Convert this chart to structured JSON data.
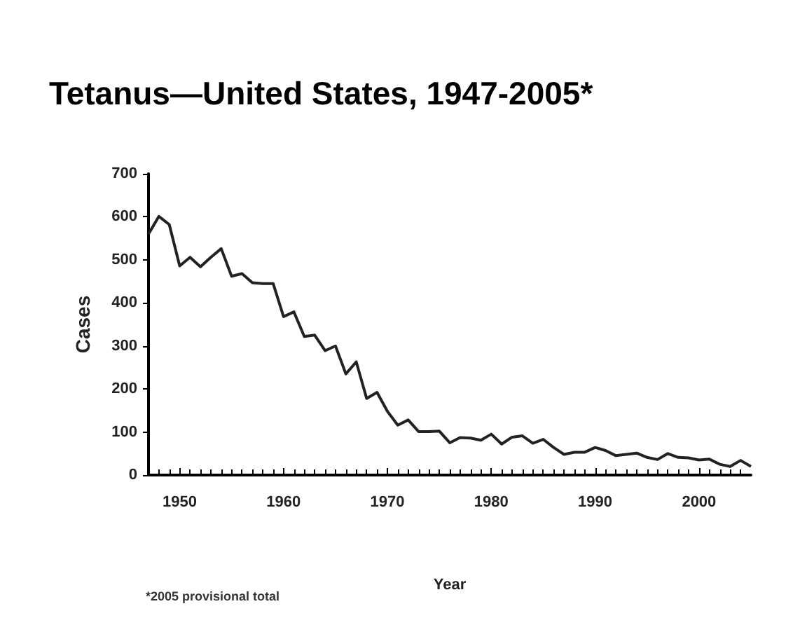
{
  "chart_data": {
    "type": "line",
    "title": "Tetanus—United States, 1947-2005*",
    "xlabel": "Year",
    "ylabel": "Cases",
    "annotations": [
      "*2005 provisional total"
    ],
    "x": [
      1947,
      1948,
      1949,
      1950,
      1951,
      1952,
      1953,
      1954,
      1955,
      1956,
      1957,
      1958,
      1959,
      1960,
      1961,
      1962,
      1963,
      1964,
      1965,
      1966,
      1967,
      1968,
      1969,
      1970,
      1971,
      1972,
      1973,
      1974,
      1975,
      1976,
      1977,
      1978,
      1979,
      1980,
      1981,
      1982,
      1983,
      1984,
      1985,
      1986,
      1987,
      1988,
      1989,
      1990,
      1991,
      1992,
      1993,
      1994,
      1995,
      1996,
      1997,
      1998,
      1999,
      2000,
      2001,
      2002,
      2003,
      2004,
      2005
    ],
    "series": [
      {
        "color": "#222222",
        "values": [
          560,
          601,
          582,
          486,
          506,
          484,
          506,
          526,
          462,
          468,
          447,
          445,
          445,
          368,
          379,
          322,
          325,
          289,
          300,
          235,
          263,
          178,
          192,
          148,
          116,
          128,
          101,
          101,
          102,
          75,
          87,
          86,
          81,
          95,
          72,
          88,
          91,
          74,
          83,
          64,
          48,
          53,
          53,
          64,
          57,
          45,
          48,
          51,
          41,
          36,
          50,
          41,
          40,
          35,
          37,
          25,
          20,
          34,
          20
        ]
      }
    ],
    "xlim": [
      1947,
      2005
    ],
    "xticks": [
      1950,
      1960,
      1970,
      1980,
      1990,
      2000
    ],
    "ylim": [
      0,
      700
    ],
    "yticks": [
      0,
      100,
      200,
      300,
      400,
      500,
      600,
      700
    ],
    "grid": false,
    "marker": "none",
    "line_style": "solid"
  }
}
